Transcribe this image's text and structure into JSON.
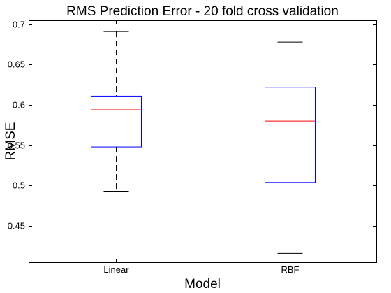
{
  "chart_data": {
    "type": "box",
    "title": "RMS Prediction Error - 20 fold cross validation",
    "xlabel": "Model",
    "ylabel": "RMSE",
    "categories": [
      "Linear",
      "RBF"
    ],
    "boxes": [
      {
        "name": "Linear",
        "min": 0.493,
        "q1": 0.548,
        "median": 0.594,
        "q3": 0.611,
        "max": 0.691
      },
      {
        "name": "RBF",
        "min": 0.416,
        "q1": 0.504,
        "median": 0.58,
        "q3": 0.622,
        "max": 0.678
      }
    ],
    "ylim": [
      0.405,
      0.705
    ],
    "yticks": [
      0.45,
      0.5,
      0.55,
      0.6,
      0.65,
      0.7
    ],
    "ytick_labels": [
      "0.45",
      "0.5",
      "0.55",
      "0.6",
      "0.65",
      "0.7"
    ],
    "grid": false,
    "colors": {
      "box": "#0000ff",
      "median": "#ff0000",
      "whisker": "#000000"
    }
  }
}
